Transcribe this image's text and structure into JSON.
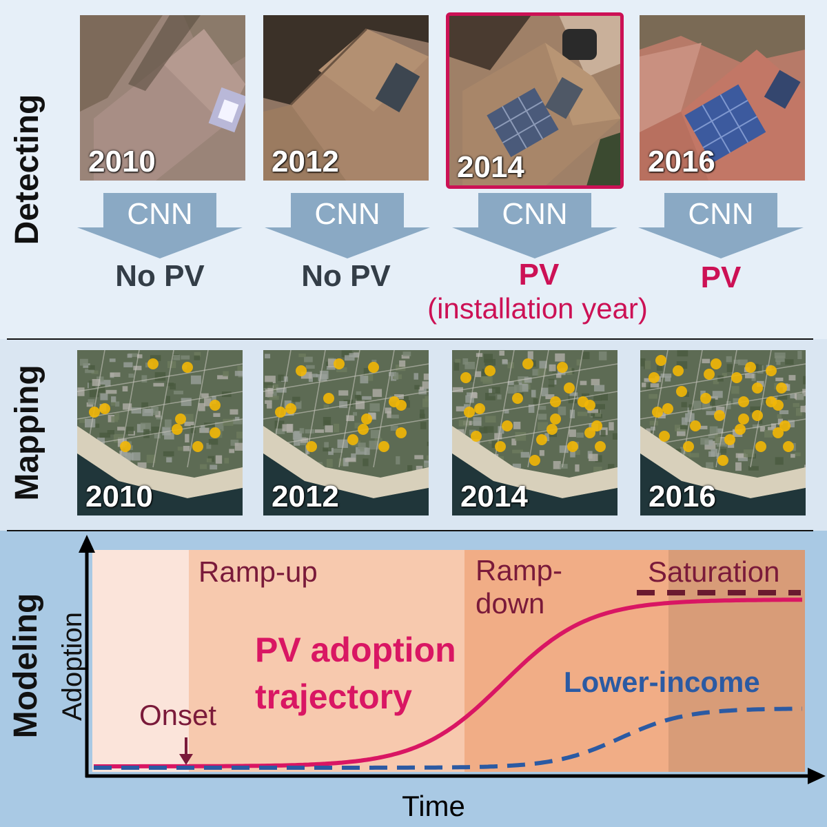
{
  "sections": {
    "detecting": "Detecting",
    "mapping": "Mapping",
    "modeling": "Modeling"
  },
  "detecting": {
    "tiles": [
      {
        "year": "2010",
        "arrow": "CNN",
        "result": "No PV",
        "note": "",
        "highlighted": false
      },
      {
        "year": "2012",
        "arrow": "CNN",
        "result": "No PV",
        "note": "",
        "highlighted": false
      },
      {
        "year": "2014",
        "arrow": "CNN",
        "result": "PV",
        "note": "(installation year)",
        "highlighted": true
      },
      {
        "year": "2016",
        "arrow": "CNN",
        "result": "PV",
        "note": "",
        "highlighted": false
      }
    ]
  },
  "mapping": {
    "tiles": [
      {
        "year": "2010"
      },
      {
        "year": "2012"
      },
      {
        "year": "2014"
      },
      {
        "year": "2016"
      }
    ]
  },
  "modeling": {
    "x_axis_label": "Time",
    "y_axis_label": "Adoption",
    "phases": [
      "Ramp-up",
      "Ramp-down",
      "Saturation"
    ],
    "phase_ramp_down_lines": [
      "Ramp-",
      "down"
    ],
    "onset_label": "Onset",
    "curve_label_lines": [
      "PV adoption",
      "trajectory"
    ],
    "lower_income_label": "Lower-income"
  },
  "colors": {
    "accent": "#cc1155",
    "no_pv_text": "#333d47",
    "dark_red": "#7a1a3a",
    "lower_income": "#2b5aa3",
    "arrow_fill": "#8aa9c4",
    "pv_marker": "#f2b705"
  }
}
